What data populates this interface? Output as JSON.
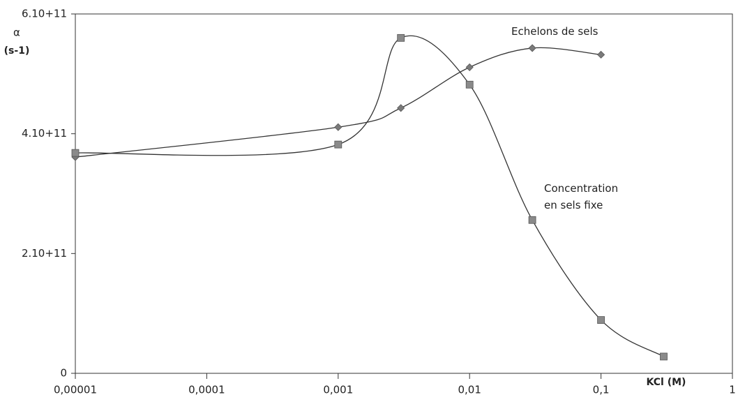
{
  "chart_data": {
    "type": "line",
    "y_label": "α",
    "y_unit": "(s-1)",
    "x_label": "KCl (M)",
    "log_x": true,
    "xlim": [
      1e-05,
      1
    ],
    "xticks": [
      {
        "value": 1e-05,
        "label": "0,00001"
      },
      {
        "value": 0.0001,
        "label": "0,0001"
      },
      {
        "value": 0.001,
        "label": "0,001"
      },
      {
        "value": 0.01,
        "label": "0,01"
      },
      {
        "value": 0.1,
        "label": "0,1"
      },
      1
    ],
    "ylim": [
      0,
      600000000000
    ],
    "yticks": [
      0,
      {
        "value": 200000000000,
        "label": "2.10+11"
      },
      {
        "value": 400000000000,
        "label": "4.10+11"
      },
      {
        "value": 600000000000,
        "label": "6.10+11"
      }
    ],
    "series": [
      {
        "name": "Echelons de sels",
        "color": "#7a7a7a",
        "marker": "diamond",
        "x": [
          1e-05,
          0.001,
          0.003,
          0.01,
          0.03,
          0.1
        ],
        "values": [
          361000000000,
          411000000000,
          443000000000,
          511000000000,
          543000000000,
          532000000000
        ]
      },
      {
        "name": "Concentration en sels fixe",
        "color": "#8a8a8a",
        "marker": "square",
        "x": [
          1e-05,
          0.001,
          0.003,
          0.01,
          0.03,
          0.1,
          0.3
        ],
        "values": [
          368000000000,
          382000000000,
          560000000000,
          482000000000,
          256000000000,
          89000000000,
          28000000000
        ]
      }
    ]
  }
}
